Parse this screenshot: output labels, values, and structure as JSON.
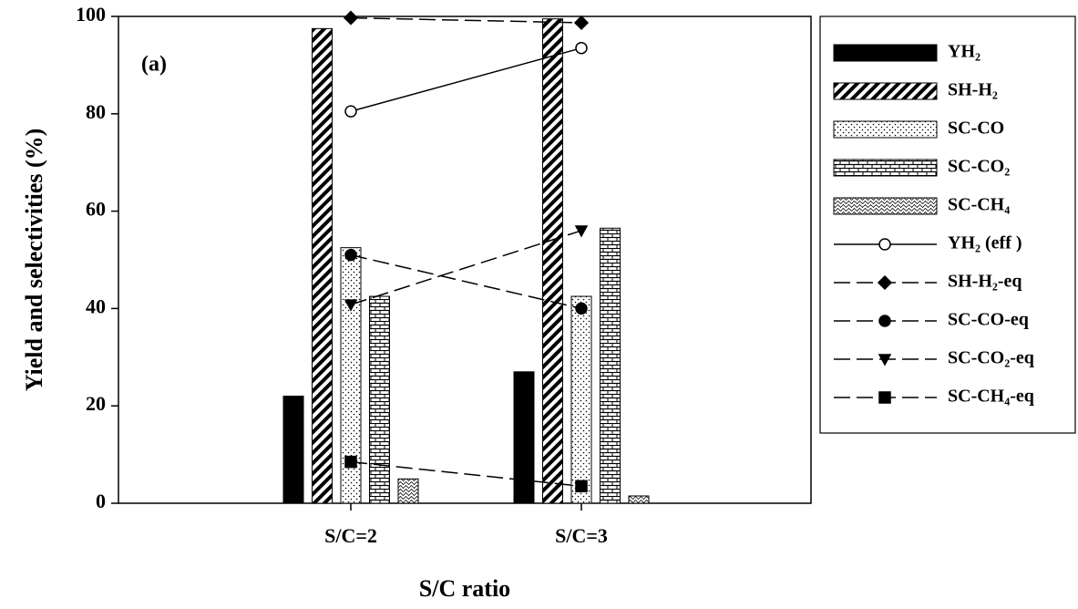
{
  "chart_data": {
    "type": "bar_line",
    "annotation": "(a)",
    "x_label": "S/C ratio",
    "y_label": "Yield and selectivities (%)",
    "categories": [
      "S/C=2",
      "S/C=3"
    ],
    "ylim": [
      0,
      100
    ],
    "yticks": [
      0,
      20,
      40,
      60,
      80,
      100
    ],
    "series": [
      {
        "name": "YH₂",
        "kind": "bar",
        "pattern": "solid",
        "color": "#000000",
        "values": [
          22,
          27
        ]
      },
      {
        "name": "SH-H₂",
        "kind": "bar",
        "pattern": "diagonal",
        "color": "#000000",
        "values": [
          97.5,
          99.5
        ]
      },
      {
        "name": "SC-CO",
        "kind": "bar",
        "pattern": "dots",
        "color": "#000000",
        "values": [
          52.5,
          42.5
        ]
      },
      {
        "name": "SC-CO₂",
        "kind": "bar",
        "pattern": "brick",
        "color": "#000000",
        "values": [
          42.5,
          56.5
        ]
      },
      {
        "name": "SC-CH₄",
        "kind": "bar",
        "pattern": "waves",
        "color": "#000000",
        "values": [
          5,
          1.5
        ]
      },
      {
        "name": "YH₂ (eff )",
        "kind": "line",
        "marker": "circle-open",
        "dashed": false,
        "color": "#000000",
        "values": [
          80.5,
          93.5
        ]
      },
      {
        "name": "SH-H₂-eq",
        "kind": "line",
        "marker": "diamond",
        "dashed": true,
        "color": "#000000",
        "values": [
          99.7,
          98.7
        ]
      },
      {
        "name": "SC-CO-eq",
        "kind": "line",
        "marker": "circle",
        "dashed": true,
        "color": "#000000",
        "values": [
          51,
          40
        ]
      },
      {
        "name": "SC-CO₂-eq",
        "kind": "line",
        "marker": "triangle-down",
        "dashed": true,
        "color": "#000000",
        "values": [
          40.8,
          56
        ]
      },
      {
        "name": "SC-CH₄-eq",
        "kind": "line",
        "marker": "square",
        "dashed": true,
        "color": "#000000",
        "values": [
          8.5,
          3.5
        ]
      }
    ]
  }
}
